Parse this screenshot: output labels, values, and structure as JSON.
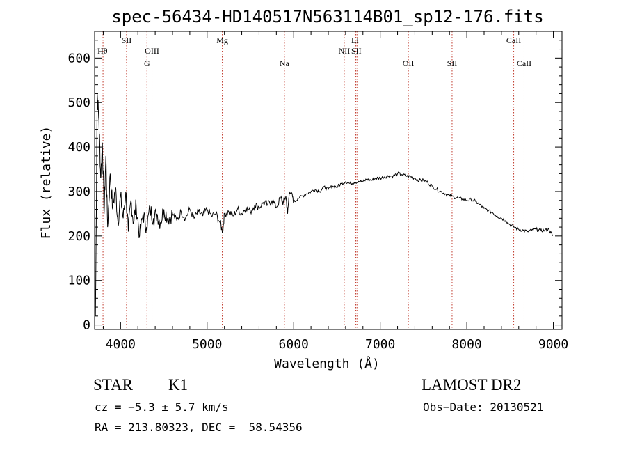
{
  "chart_data": {
    "type": "line",
    "title": "spec-56434-HD140517N563114B01_sp12-176.fits",
    "xlabel": "Wavelength (Å)",
    "ylabel": "Flux (relative)",
    "xlim": [
      3700,
      9100
    ],
    "ylim": [
      -10,
      660
    ],
    "xticks": [
      4000,
      5000,
      6000,
      7000,
      8000,
      9000
    ],
    "yticks": [
      0,
      100,
      200,
      300,
      400,
      500,
      600
    ],
    "grid": false,
    "series": [
      {
        "color": "#000000",
        "x": [
          3710,
          3730,
          3750,
          3770,
          3790,
          3810,
          3830,
          3850,
          3880,
          3910,
          3940,
          3970,
          4000,
          4030,
          4060,
          4090,
          4120,
          4150,
          4180,
          4220,
          4260,
          4300,
          4340,
          4380,
          4420,
          4460,
          4500,
          4550,
          4600,
          4650,
          4700,
          4750,
          4800,
          4850,
          4900,
          4950,
          5000,
          5050,
          5100,
          5150,
          5180,
          5200,
          5250,
          5300,
          5350,
          5400,
          5450,
          5500,
          5550,
          5600,
          5650,
          5700,
          5750,
          5800,
          5850,
          5880,
          5910,
          5930,
          5950,
          5980,
          6000,
          6050,
          6100,
          6150,
          6200,
          6250,
          6300,
          6350,
          6400,
          6450,
          6500,
          6550,
          6600,
          6650,
          6700,
          6750,
          6800,
          6850,
          6900,
          6950,
          7000,
          7050,
          7100,
          7150,
          7200,
          7250,
          7300,
          7350,
          7400,
          7450,
          7500,
          7550,
          7600,
          7650,
          7700,
          7750,
          7800,
          7850,
          7900,
          7950,
          8000,
          8050,
          8100,
          8150,
          8200,
          8250,
          8300,
          8350,
          8400,
          8450,
          8500,
          8550,
          8600,
          8650,
          8700,
          8750,
          8800,
          8850,
          8900,
          8950,
          8990
        ],
        "y": [
          20,
          520,
          460,
          330,
          410,
          250,
          380,
          220,
          340,
          260,
          310,
          230,
          290,
          240,
          300,
          210,
          280,
          230,
          270,
          200,
          250,
          220,
          260,
          240,
          250,
          230,
          260,
          240,
          250,
          235,
          255,
          240,
          260,
          240,
          255,
          245,
          260,
          245,
          250,
          230,
          210,
          250,
          255,
          245,
          260,
          250,
          265,
          255,
          270,
          265,
          275,
          270,
          280,
          265,
          285,
          275,
          290,
          250,
          300,
          295,
          275,
          285,
          290,
          295,
          300,
          305,
          300,
          310,
          305,
          312,
          310,
          318,
          322,
          318,
          320,
          323,
          322,
          328,
          325,
          330,
          330,
          333,
          335,
          335,
          340,
          338,
          335,
          333,
          330,
          325,
          325,
          320,
          312,
          305,
          300,
          295,
          290,
          288,
          285,
          283,
          280,
          282,
          278,
          270,
          262,
          257,
          252,
          245,
          240,
          235,
          225,
          220,
          215,
          213,
          210,
          213,
          215,
          212,
          213,
          215,
          200
        ]
      }
    ],
    "line_markers": [
      {
        "label": "Hθ",
        "x": 3797,
        "row": 2
      },
      {
        "label": "SII",
        "x": 4069,
        "row": 1
      },
      {
        "label": "OIII",
        "x": 4363,
        "row": 2
      },
      {
        "label": "G",
        "x": 4305,
        "row": 3
      },
      {
        "label": "Mg",
        "x": 5175,
        "row": 1
      },
      {
        "label": "Na",
        "x": 5893,
        "row": 3
      },
      {
        "label": "Li",
        "x": 6708,
        "row": 1
      },
      {
        "label": "NII",
        "x": 6584,
        "row": 2
      },
      {
        "label": "SII",
        "x": 6724,
        "row": 2
      },
      {
        "label": "OII",
        "x": 7325,
        "row": 3
      },
      {
        "label": "SII",
        "x": 7830,
        "row": 3
      },
      {
        "label": "CaII",
        "x": 8542,
        "row": 1
      },
      {
        "label": "CaII",
        "x": 8662,
        "row": 3
      }
    ],
    "marker_lines_x": [
      3797,
      4069,
      4305,
      4363,
      5175,
      5893,
      6584,
      6717,
      6731,
      7325,
      7830,
      8542,
      8662
    ]
  },
  "info": {
    "object_type": "STAR",
    "subclass": "K1",
    "survey": "LAMOST DR2",
    "cz": "cz = −5.3 ± 5.7 km/s",
    "obs_date": "Obs−Date: 20130521",
    "coords": "RA = 213.80323, DEC =  58.54356"
  }
}
